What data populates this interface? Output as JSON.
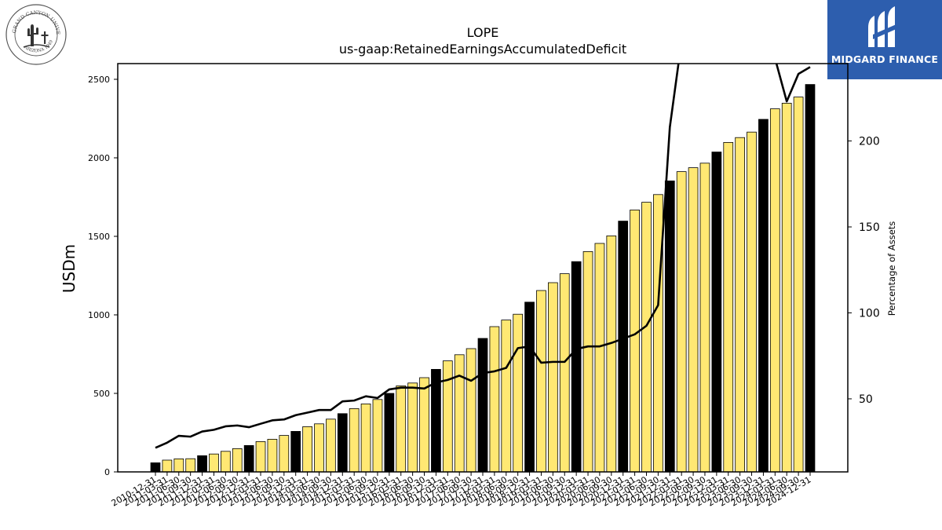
{
  "header": {
    "title": "LOPE",
    "subtitle": "us-gaap:RetainedEarningsAccumulatedDeficit"
  },
  "logos": {
    "left": {
      "ring_text_top": "GRAND CANYON UNIVERSITY",
      "ring_text_bottom": "ARIZONA 1949"
    },
    "right": {
      "name": "MIDGARD FINANCE",
      "bg_color": "#2d5eae"
    }
  },
  "chart_data": {
    "type": "bar",
    "title": "LOPE",
    "subtitle": "us-gaap:RetainedEarningsAccumulatedDeficit",
    "ylabel": "USDm",
    "ylabel_right": "Percentage of Assets",
    "ylim": [
      0,
      2600
    ],
    "ylim_right": [
      7.5,
      245
    ],
    "yticks": [
      0,
      500,
      1000,
      1500,
      2000,
      2500
    ],
    "yticks_right": [
      50,
      100,
      150,
      200
    ],
    "colors": {
      "annual_bar": "#000000",
      "quarter_bar": "#ffe873",
      "line": "#000000"
    },
    "categories": [
      "2010-12-31",
      "2011-03-31",
      "2011-06-30",
      "2011-09-30",
      "2011-12-31",
      "2012-03-31",
      "2012-06-30",
      "2012-09-30",
      "2012-12-31",
      "2013-03-31",
      "2013-06-30",
      "2013-09-30",
      "2013-12-31",
      "2014-03-31",
      "2014-06-30",
      "2014-09-30",
      "2014-12-31",
      "2015-03-31",
      "2015-06-30",
      "2015-09-30",
      "2015-12-31",
      "2016-03-31",
      "2016-06-30",
      "2016-09-30",
      "2016-12-31",
      "2017-03-31",
      "2017-06-30",
      "2017-09-30",
      "2017-12-31",
      "2018-03-31",
      "2018-06-30",
      "2018-09-30",
      "2018-12-31",
      "2019-03-31",
      "2019-06-30",
      "2019-09-30",
      "2019-12-31",
      "2020-03-31",
      "2020-06-30",
      "2020-09-30",
      "2020-12-31",
      "2021-03-31",
      "2021-06-30",
      "2021-09-30",
      "2021-12-31",
      "2022-03-31",
      "2022-06-30",
      "2022-09-30",
      "2022-12-31",
      "2023-03-31",
      "2023-06-30",
      "2023-09-30",
      "2023-12-31",
      "2024-03-31",
      "2024-06-30",
      "2024-09-30",
      "2024-12-31"
    ],
    "series": [
      {
        "kind": "bar",
        "axis": "left",
        "values": [
          58,
          75,
          83,
          84,
          103,
          114,
          131,
          148,
          168,
          193,
          208,
          232,
          258,
          288,
          306,
          336,
          371,
          403,
          433,
          461,
          500,
          548,
          566,
          600,
          653,
          707,
          746,
          785,
          850,
          925,
          967,
          1004,
          1081,
          1155,
          1205,
          1262,
          1339,
          1403,
          1455,
          1503,
          1597,
          1668,
          1717,
          1766,
          1853,
          1912,
          1937,
          1966,
          2037,
          2098,
          2129,
          2164,
          2245,
          2312,
          2348,
          2387,
          2467
        ]
      },
      {
        "kind": "line",
        "axis": "right",
        "values": [
          21.5,
          24.5,
          28.5,
          28,
          31,
          32,
          34,
          34.5,
          33.5,
          35.5,
          37.5,
          38,
          40.5,
          42,
          43.5,
          43.5,
          48.5,
          49,
          51.5,
          50.5,
          55.5,
          56.5,
          56.5,
          56,
          59.5,
          61,
          63.5,
          60.5,
          65,
          66,
          68,
          79.5,
          80.5,
          71,
          71.5,
          71.5,
          79,
          80.5,
          80.5,
          82.5,
          85,
          87.5,
          92.5,
          104.5,
          208,
          258,
          264,
          260,
          256,
          250,
          265,
          262,
          260,
          248,
          223,
          239,
          243
        ]
      }
    ]
  }
}
